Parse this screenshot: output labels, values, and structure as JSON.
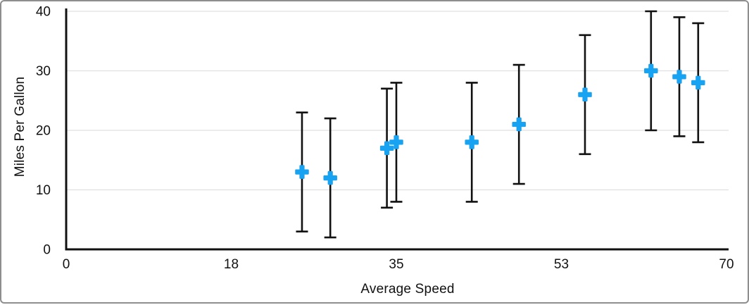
{
  "frame": {
    "background": "#ffffff",
    "border_color": "#8e8e8e"
  },
  "chart_data": {
    "type": "scatter",
    "title": "",
    "xlabel": "Average Speed",
    "ylabel": "Miles Per Gallon",
    "xlim": [
      0,
      70
    ],
    "ylim": [
      0,
      40
    ],
    "x_ticks": {
      "values": [
        0,
        17.5,
        35,
        52.5,
        70
      ],
      "labels": [
        "0",
        "18",
        "35",
        "53",
        "70"
      ]
    },
    "y_ticks": {
      "values": [
        0,
        10,
        20,
        30,
        40
      ],
      "labels": [
        "0",
        "10",
        "20",
        "30",
        "40"
      ]
    },
    "grid": "horizontal",
    "gridline_color": "#e0e0e0",
    "axis_color": "#111111",
    "tick_label_color": "#111111",
    "legend": "none",
    "series": [
      {
        "name": "Miles Per Gallon",
        "marker": "plus",
        "marker_color": "#18A2F2",
        "error_bar": {
          "type": "fixed",
          "plus": 10,
          "minus": 10,
          "color": "#111111"
        },
        "points": [
          {
            "x": 25,
            "y": 13
          },
          {
            "x": 28,
            "y": 12
          },
          {
            "x": 34,
            "y": 17
          },
          {
            "x": 35,
            "y": 18
          },
          {
            "x": 43,
            "y": 18
          },
          {
            "x": 48,
            "y": 21
          },
          {
            "x": 55,
            "y": 26
          },
          {
            "x": 62,
            "y": 30
          },
          {
            "x": 65,
            "y": 29
          },
          {
            "x": 67,
            "y": 28
          }
        ]
      }
    ]
  }
}
